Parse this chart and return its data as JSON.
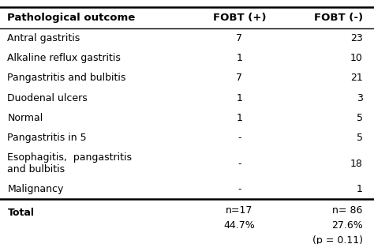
{
  "headers": [
    "Pathological outcome",
    "FOBT (+)",
    "FOBT (-)"
  ],
  "rows": [
    [
      "Antral gastritis",
      "7",
      "23"
    ],
    [
      "Alkaline reflux gastritis",
      "1",
      "10"
    ],
    [
      "Pangastritis and bulbitis",
      "7",
      "21"
    ],
    [
      "Duodenal ulcers",
      "1",
      "3"
    ],
    [
      "Normal",
      "1",
      "5"
    ],
    [
      "Pangastritis in 5",
      "-",
      "5"
    ],
    [
      "Esophagitis,  pangastritis\nand bulbitis",
      "-",
      "18"
    ],
    [
      "Malignancy",
      "-",
      "1"
    ]
  ],
  "total_label": "Total",
  "total_fobt_pos": "n=17\n44.7%",
  "total_fobt_neg": "n= 86\n27.6%\n(p = 0.11)",
  "bg_color": "#ffffff",
  "line_color": "#000000",
  "text_color": "#000000",
  "font_size": 9.0,
  "header_font_size": 9.5,
  "fig_width": 4.74,
  "fig_height": 3.09,
  "dpi": 100
}
